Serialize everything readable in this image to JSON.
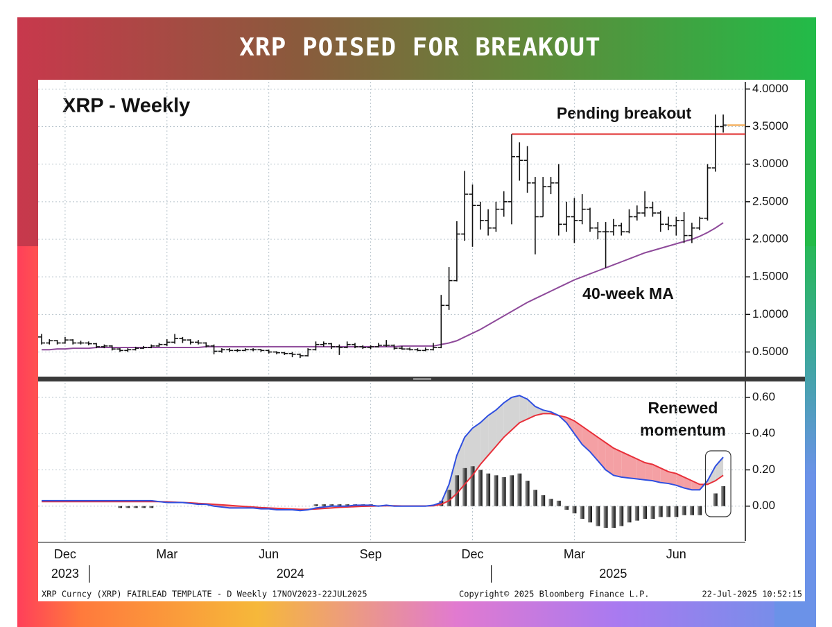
{
  "chart_data": {
    "type": "ohlc",
    "title": "XRP POISED FOR BREAKOUT",
    "subtitle": "XRP - Weekly",
    "categories": [
      null,
      null,
      null,
      "Dec",
      null,
      null,
      null,
      null,
      null,
      null,
      null,
      null,
      null,
      null,
      null,
      null,
      "Mar",
      null,
      null,
      null,
      null,
      null,
      null,
      null,
      null,
      null,
      null,
      null,
      null,
      "Jun",
      null,
      null,
      null,
      null,
      null,
      null,
      null,
      null,
      null,
      null,
      null,
      null,
      "Sep",
      null,
      null,
      null,
      null,
      null,
      null,
      null,
      null,
      null,
      null,
      null,
      null,
      "Dec",
      null,
      null,
      null,
      null,
      null,
      null,
      null,
      null,
      null,
      null,
      null,
      null,
      "Mar",
      null,
      null,
      null,
      null,
      null,
      null,
      null,
      null,
      null,
      null,
      null,
      null,
      "Jun",
      null,
      null,
      null,
      null,
      null,
      null
    ],
    "years": [
      "2023",
      "2024",
      "2025"
    ],
    "ohlc": {
      "color": "#111111",
      "open": [
        0.7,
        0.62,
        0.65,
        0.62,
        0.66,
        0.62,
        0.62,
        0.61,
        0.57,
        0.58,
        0.54,
        0.52,
        0.53,
        0.55,
        0.56,
        0.58,
        0.6,
        0.63,
        0.68,
        0.66,
        0.63,
        0.62,
        0.58,
        0.51,
        0.53,
        0.52,
        0.52,
        0.53,
        0.53,
        0.52,
        0.5,
        0.49,
        0.48,
        0.47,
        0.45,
        0.53,
        0.6,
        0.61,
        0.57,
        0.56,
        0.6,
        0.57,
        0.56,
        0.57,
        0.59,
        0.59,
        0.55,
        0.54,
        0.53,
        0.52,
        0.53,
        0.56,
        1.12,
        1.45,
        2.07,
        2.6,
        2.45,
        2.25,
        2.15,
        2.4,
        2.5,
        3.1,
        3.05,
        2.75,
        2.3,
        2.7,
        2.75,
        2.2,
        2.3,
        2.25,
        2.4,
        2.15,
        2.1,
        2.1,
        2.18,
        2.1,
        2.3,
        2.35,
        2.42,
        2.35,
        2.2,
        2.18,
        2.25,
        2.05,
        2.15,
        2.28,
        2.95,
        3.5
      ],
      "high": [
        0.74,
        0.67,
        0.66,
        0.7,
        0.67,
        0.65,
        0.64,
        0.62,
        0.6,
        0.59,
        0.55,
        0.55,
        0.57,
        0.58,
        0.6,
        0.62,
        0.67,
        0.74,
        0.7,
        0.67,
        0.66,
        0.63,
        0.6,
        0.55,
        0.55,
        0.54,
        0.55,
        0.55,
        0.54,
        0.53,
        0.51,
        0.5,
        0.5,
        0.48,
        0.55,
        0.64,
        0.64,
        0.62,
        0.6,
        0.64,
        0.62,
        0.59,
        0.59,
        0.62,
        0.66,
        0.6,
        0.58,
        0.56,
        0.55,
        0.56,
        0.62,
        1.26,
        1.63,
        2.24,
        2.91,
        2.73,
        2.5,
        2.4,
        2.5,
        2.64,
        3.4,
        3.29,
        3.24,
        2.83,
        2.83,
        2.83,
        3.0,
        2.5,
        2.55,
        2.6,
        2.42,
        2.23,
        2.23,
        2.27,
        2.22,
        2.4,
        2.45,
        2.64,
        2.5,
        2.38,
        2.3,
        2.3,
        2.36,
        2.22,
        2.3,
        3.0,
        3.66,
        3.66
      ],
      "low": [
        0.6,
        0.6,
        0.6,
        0.61,
        0.6,
        0.6,
        0.59,
        0.55,
        0.55,
        0.52,
        0.5,
        0.5,
        0.52,
        0.54,
        0.55,
        0.57,
        0.58,
        0.61,
        0.62,
        0.6,
        0.6,
        0.56,
        0.47,
        0.49,
        0.5,
        0.5,
        0.51,
        0.51,
        0.5,
        0.48,
        0.47,
        0.46,
        0.43,
        0.42,
        0.44,
        0.52,
        0.57,
        0.54,
        0.46,
        0.55,
        0.55,
        0.54,
        0.54,
        0.56,
        0.57,
        0.53,
        0.53,
        0.52,
        0.51,
        0.51,
        0.52,
        0.55,
        1.06,
        1.44,
        1.98,
        1.9,
        2.13,
        2.05,
        2.1,
        2.3,
        2.2,
        2.78,
        2.62,
        1.8,
        2.3,
        2.6,
        2.05,
        2.1,
        1.95,
        2.2,
        2.1,
        2.0,
        1.62,
        2.05,
        2.05,
        2.08,
        2.25,
        2.3,
        2.3,
        2.1,
        2.12,
        2.05,
        1.95,
        1.95,
        2.12,
        2.25,
        2.9,
        3.42
      ],
      "close": [
        0.62,
        0.65,
        0.62,
        0.66,
        0.62,
        0.62,
        0.61,
        0.57,
        0.58,
        0.54,
        0.52,
        0.53,
        0.55,
        0.56,
        0.58,
        0.6,
        0.63,
        0.68,
        0.66,
        0.63,
        0.62,
        0.58,
        0.51,
        0.53,
        0.52,
        0.52,
        0.53,
        0.53,
        0.52,
        0.5,
        0.49,
        0.48,
        0.47,
        0.45,
        0.53,
        0.6,
        0.61,
        0.57,
        0.56,
        0.6,
        0.57,
        0.56,
        0.57,
        0.59,
        0.59,
        0.55,
        0.54,
        0.53,
        0.52,
        0.53,
        0.56,
        1.12,
        1.45,
        2.07,
        2.6,
        2.45,
        2.25,
        2.15,
        2.4,
        2.5,
        3.1,
        3.05,
        2.75,
        2.3,
        2.7,
        2.75,
        2.2,
        2.3,
        2.25,
        2.4,
        2.15,
        2.1,
        2.1,
        2.18,
        2.1,
        2.3,
        2.35,
        2.42,
        2.35,
        2.2,
        2.18,
        2.25,
        2.05,
        2.15,
        2.28,
        2.95,
        3.5,
        3.52
      ],
      "last_color": "#f0a040"
    },
    "ma": {
      "label": "40-week MA",
      "color": "#8e4a9a",
      "values": [
        0.53,
        0.53,
        0.54,
        0.54,
        0.55,
        0.55,
        0.55,
        0.56,
        0.56,
        0.56,
        0.56,
        0.56,
        0.56,
        0.56,
        0.56,
        0.56,
        0.56,
        0.56,
        0.56,
        0.56,
        0.56,
        0.57,
        0.57,
        0.57,
        0.57,
        0.57,
        0.57,
        0.57,
        0.57,
        0.57,
        0.57,
        0.57,
        0.57,
        0.57,
        0.57,
        0.57,
        0.57,
        0.57,
        0.57,
        0.57,
        0.57,
        0.57,
        0.57,
        0.57,
        0.57,
        0.57,
        0.58,
        0.58,
        0.58,
        0.58,
        0.58,
        0.6,
        0.62,
        0.65,
        0.7,
        0.75,
        0.8,
        0.86,
        0.92,
        0.98,
        1.04,
        1.1,
        1.16,
        1.21,
        1.26,
        1.31,
        1.36,
        1.41,
        1.46,
        1.5,
        1.54,
        1.58,
        1.62,
        1.66,
        1.7,
        1.74,
        1.78,
        1.82,
        1.85,
        1.88,
        1.91,
        1.94,
        1.97,
        2.0,
        2.04,
        2.09,
        2.15,
        2.22
      ]
    },
    "breakout": {
      "label": "Pending breakout",
      "value": 3.4,
      "color": "#e03030"
    },
    "ylim": [
      0.2,
      4.1
    ],
    "yticks": [
      {
        "value": 0.5,
        "label": "0.5000"
      },
      {
        "value": 1,
        "label": "1.0000"
      },
      {
        "value": 1.5,
        "label": "1.5000"
      },
      {
        "value": 2,
        "label": "2.0000"
      },
      {
        "value": 2.5,
        "label": "2.5000"
      },
      {
        "value": 3,
        "label": "3.0000"
      },
      {
        "value": 3.5,
        "label": "3.5000"
      },
      {
        "value": 4,
        "label": "4.0000"
      }
    ],
    "grid": true,
    "macd": {
      "type": "macd",
      "label": [
        "Renewed",
        "momentum"
      ],
      "ylim": [
        -0.2,
        0.68
      ],
      "yticks": [
        {
          "value": 0,
          "label": "0.00"
        },
        {
          "value": 0.2,
          "label": "0.20"
        },
        {
          "value": 0.4,
          "label": "0.40"
        },
        {
          "value": 0.6,
          "label": "0.60"
        }
      ],
      "macd": {
        "color": "#2f4fe0",
        "values": [
          0.03,
          0.03,
          0.03,
          0.03,
          0.03,
          0.03,
          0.03,
          0.03,
          0.03,
          0.03,
          0.03,
          0.03,
          0.03,
          0.03,
          0.03,
          0.025,
          0.02,
          0.02,
          0.02,
          0.015,
          0.01,
          0.01,
          0,
          -0.005,
          -0.01,
          -0.01,
          -0.01,
          -0.01,
          -0.015,
          -0.015,
          -0.02,
          -0.02,
          -0.02,
          -0.025,
          -0.02,
          -0.01,
          -0.005,
          0,
          0,
          0,
          0.005,
          0.005,
          0.005,
          0,
          0.005,
          0,
          0,
          0,
          0,
          0,
          0.005,
          0.02,
          0.12,
          0.28,
          0.38,
          0.43,
          0.46,
          0.5,
          0.53,
          0.57,
          0.6,
          0.61,
          0.59,
          0.55,
          0.53,
          0.52,
          0.5,
          0.46,
          0.4,
          0.34,
          0.3,
          0.25,
          0.2,
          0.17,
          0.16,
          0.155,
          0.15,
          0.145,
          0.14,
          0.13,
          0.125,
          0.115,
          0.1,
          0.09,
          0.09,
          0.14,
          0.22,
          0.27
        ]
      },
      "signal": {
        "color": "#e8303a",
        "values": [
          0.025,
          0.025,
          0.025,
          0.025,
          0.025,
          0.025,
          0.025,
          0.025,
          0.025,
          0.025,
          0.025,
          0.025,
          0.025,
          0.025,
          0.025,
          0.025,
          0.024,
          0.022,
          0.02,
          0.018,
          0.015,
          0.013,
          0.01,
          0.007,
          0.004,
          0.001,
          -0.002,
          -0.005,
          -0.008,
          -0.01,
          -0.012,
          -0.014,
          -0.016,
          -0.018,
          -0.018,
          -0.016,
          -0.013,
          -0.01,
          -0.007,
          -0.005,
          -0.003,
          -0.001,
          0,
          0.001,
          0.002,
          0.002,
          0.001,
          0.001,
          0.001,
          0.001,
          0.002,
          0.01,
          0.03,
          0.07,
          0.12,
          0.17,
          0.23,
          0.28,
          0.33,
          0.38,
          0.42,
          0.46,
          0.48,
          0.5,
          0.51,
          0.51,
          0.5,
          0.49,
          0.47,
          0.44,
          0.41,
          0.38,
          0.35,
          0.32,
          0.3,
          0.28,
          0.26,
          0.24,
          0.23,
          0.21,
          0.19,
          0.18,
          0.16,
          0.14,
          0.12,
          0.12,
          0.14,
          0.17
        ]
      },
      "histogram": {
        "values": [
          0,
          0,
          0,
          0,
          0,
          0,
          0,
          0,
          0,
          0,
          -0.01,
          -0.01,
          -0.01,
          -0.01,
          -0.01,
          0,
          0,
          0,
          0,
          0,
          0,
          0,
          0,
          0,
          0,
          0,
          0,
          0,
          0,
          0,
          0,
          0,
          0,
          0,
          0,
          0.01,
          0.01,
          0.01,
          0.01,
          0.01,
          0.01,
          0.01,
          0.01,
          0,
          0,
          0,
          0,
          0,
          0,
          0,
          0,
          0.03,
          0.09,
          0.17,
          0.21,
          0.22,
          0.2,
          0.18,
          0.17,
          0.16,
          0.17,
          0.18,
          0.14,
          0.09,
          0.06,
          0.04,
          0.03,
          -0.02,
          -0.04,
          -0.07,
          -0.09,
          -0.11,
          -0.12,
          -0.12,
          -0.11,
          -0.09,
          -0.08,
          -0.07,
          -0.07,
          -0.06,
          -0.06,
          -0.06,
          -0.05,
          -0.05,
          -0.05,
          0,
          0.07,
          0.11
        ]
      }
    },
    "footer": {
      "left": "XRP Curncy (XRP) FAIRLEAD TEMPLATE - D  Weekly 17NOV2023-22JUL2025",
      "center": "Copyright© 2025 Bloomberg Finance L.P.",
      "right": "22-Jul-2025 10:52:15"
    }
  }
}
